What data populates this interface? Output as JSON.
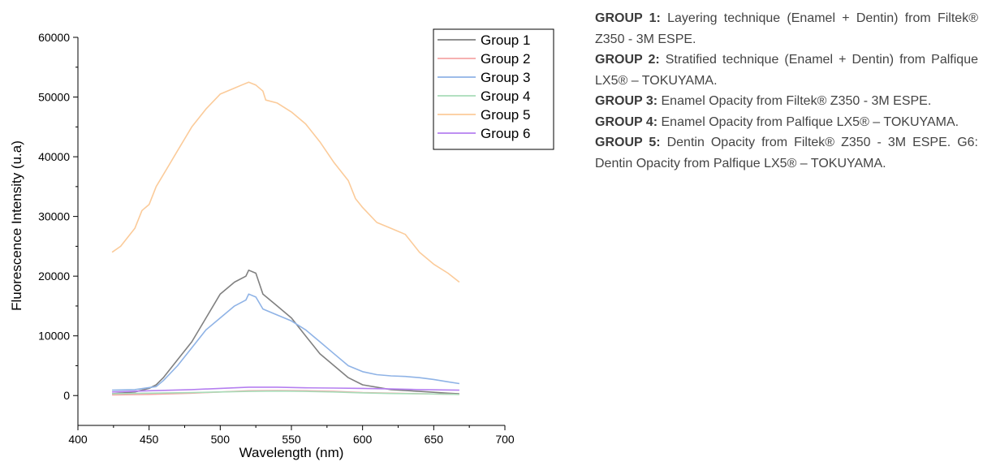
{
  "chart_data": {
    "type": "line",
    "xlabel": "Wavelength (nm)",
    "ylabel": "Fluorescence Intensity (u.a)",
    "xlim": [
      400,
      700
    ],
    "ylim": [
      -5000,
      60000
    ],
    "x_ticks": [
      400,
      450,
      500,
      550,
      600,
      650,
      700
    ],
    "y_ticks": [
      0,
      10000,
      20000,
      30000,
      40000,
      50000,
      60000
    ],
    "grid": false,
    "legend_position": "top-right",
    "series": [
      {
        "name": "Group 1",
        "color": "#808080",
        "x": [
          424,
          440,
          450,
          455,
          460,
          470,
          480,
          490,
          500,
          510,
          518,
          520,
          525,
          530,
          540,
          550,
          560,
          570,
          580,
          590,
          600,
          620,
          640,
          660,
          668
        ],
        "y": [
          300,
          600,
          1200,
          1800,
          3000,
          6000,
          9000,
          13000,
          17000,
          19000,
          20000,
          21000,
          20500,
          17000,
          15000,
          13000,
          10000,
          7000,
          5000,
          3000,
          1800,
          1000,
          700,
          400,
          300
        ]
      },
      {
        "name": "Group 2",
        "color": "#f4a6a6",
        "x": [
          424,
          450,
          480,
          500,
          520,
          540,
          560,
          580,
          600,
          620,
          640,
          668
        ],
        "y": [
          100,
          200,
          400,
          600,
          800,
          850,
          800,
          700,
          500,
          400,
          300,
          200
        ]
      },
      {
        "name": "Group 3",
        "color": "#8fb3e6",
        "x": [
          424,
          440,
          455,
          460,
          470,
          480,
          490,
          500,
          510,
          518,
          520,
          525,
          530,
          540,
          550,
          560,
          570,
          580,
          590,
          600,
          610,
          620,
          630,
          640,
          650,
          660,
          668
        ],
        "y": [
          900,
          1000,
          1500,
          2500,
          5000,
          8000,
          11000,
          13000,
          15000,
          16000,
          17000,
          16500,
          14500,
          13500,
          12500,
          11000,
          9000,
          7000,
          5000,
          4000,
          3500,
          3300,
          3200,
          3000,
          2700,
          2300,
          2000
        ]
      },
      {
        "name": "Group 4",
        "color": "#a8dcb8",
        "x": [
          424,
          450,
          480,
          500,
          520,
          540,
          560,
          580,
          600,
          620,
          640,
          668
        ],
        "y": [
          300,
          400,
          500,
          600,
          700,
          750,
          700,
          600,
          450,
          350,
          300,
          200
        ]
      },
      {
        "name": "Group 5",
        "color": "#fbcb9a",
        "x": [
          424,
          430,
          440,
          445,
          450,
          455,
          460,
          465,
          470,
          475,
          480,
          490,
          500,
          510,
          515,
          520,
          525,
          530,
          532,
          540,
          550,
          560,
          570,
          580,
          590,
          595,
          600,
          610,
          620,
          630,
          640,
          650,
          660,
          668
        ],
        "y": [
          24000,
          25000,
          28000,
          31000,
          32000,
          35000,
          37000,
          39000,
          41000,
          43000,
          45000,
          48000,
          50500,
          51500,
          52000,
          52500,
          52000,
          51000,
          49500,
          49000,
          47500,
          45500,
          42500,
          39000,
          36000,
          33000,
          31500,
          29000,
          28000,
          27000,
          24000,
          22000,
          20500,
          19000
        ]
      },
      {
        "name": "Group 6",
        "color": "#b57ff0",
        "x": [
          424,
          450,
          480,
          500,
          520,
          540,
          560,
          580,
          600,
          620,
          640,
          668
        ],
        "y": [
          600,
          800,
          1000,
          1200,
          1400,
          1400,
          1300,
          1250,
          1200,
          1100,
          1000,
          900
        ]
      }
    ]
  },
  "caption": [
    {
      "label": "GROUP 1:",
      "text": " Layering technique (Enamel + Dentin) from Filtek® Z350 - 3M ESPE."
    },
    {
      "label": "GROUP 2:",
      "text": " Stratified technique (Enamel + Dentin) from Palfique LX5® – TOKUYAMA."
    },
    {
      "label": "GROUP 3:",
      "text": " Enamel Opacity from Filtek® Z350 - 3M ESPE."
    },
    {
      "label": "GROUP 4:",
      "text": " Enamel Opacity from Palfique LX5® – TOKUYAMA."
    },
    {
      "label": "GROUP 5:",
      "text": " Dentin Opacity from Filtek® Z350 - 3M ESPE. G6: Dentin Opacity from Palfique LX5® – TOKUYAMA."
    }
  ]
}
